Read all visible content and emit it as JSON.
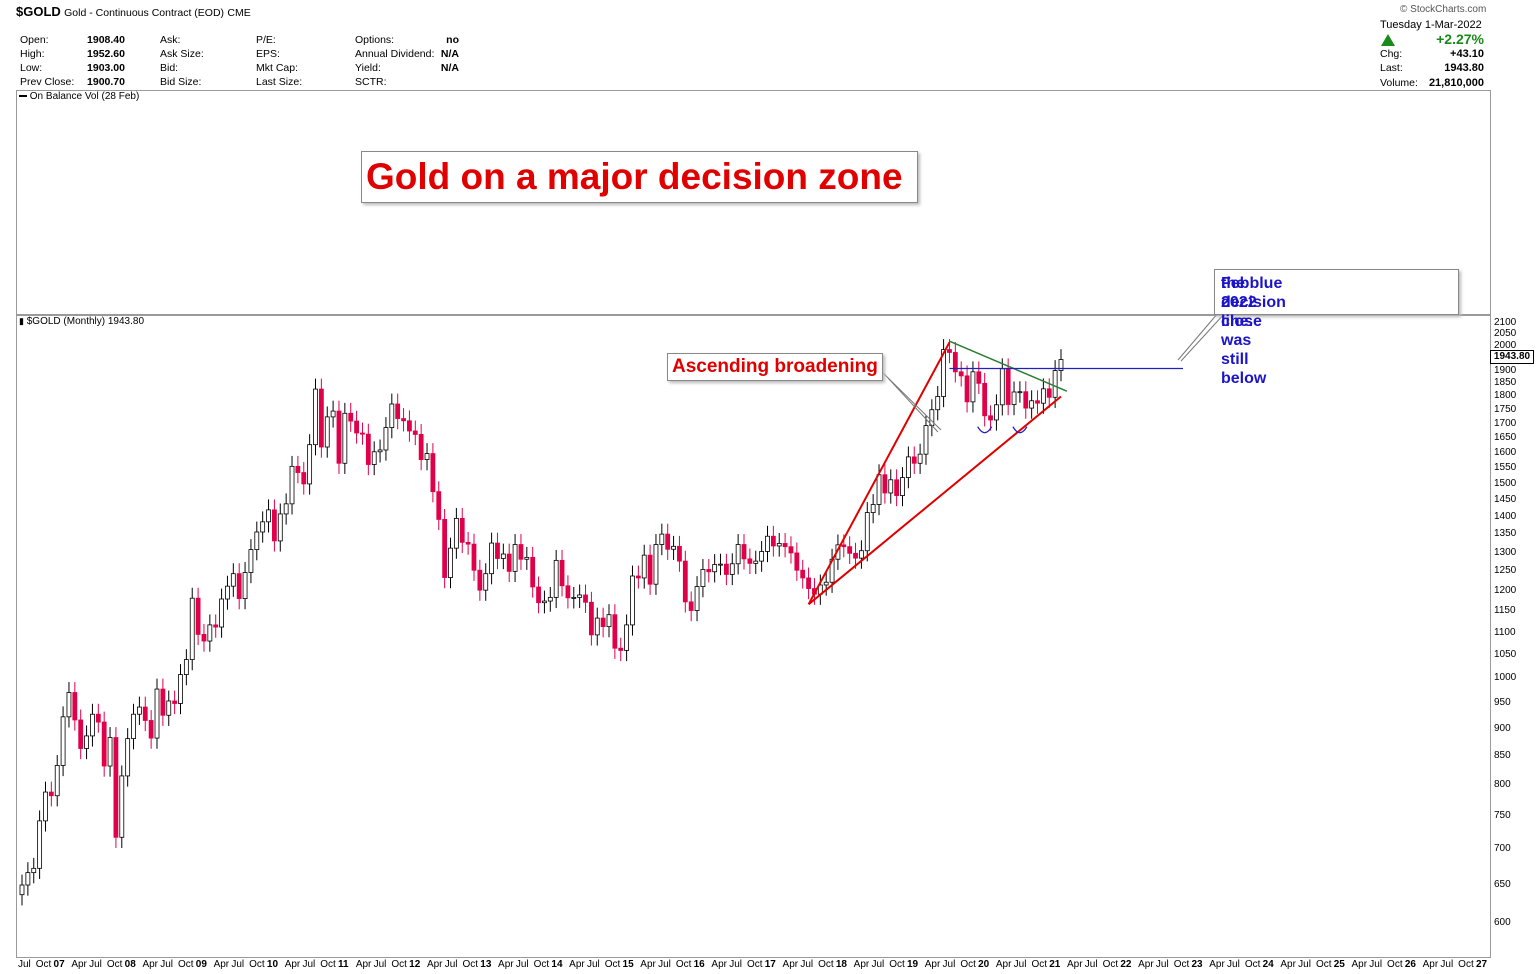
{
  "header": {
    "symbol": "$GOLD",
    "name": "Gold - Continuous Contract (EOD)",
    "exchange": "CME",
    "fields": [
      {
        "label": "Open:",
        "value": "1908.40"
      },
      {
        "label": "High:",
        "value": "1952.60"
      },
      {
        "label": "Low:",
        "value": "1903.00"
      },
      {
        "label": "Prev Close:",
        "value": "1900.70"
      },
      {
        "label": "Ask:",
        "value": ""
      },
      {
        "label": "Ask Size:",
        "value": ""
      },
      {
        "label": "Bid:",
        "value": ""
      },
      {
        "label": "Bid Size:",
        "value": ""
      },
      {
        "label": "P/E:",
        "value": ""
      },
      {
        "label": "EPS:",
        "value": ""
      },
      {
        "label": "Mkt Cap:",
        "value": ""
      },
      {
        "label": "Last Size:",
        "value": ""
      },
      {
        "label": "Options:",
        "value": "no"
      },
      {
        "label": "Annual Dividend:",
        "value": "N/A"
      },
      {
        "label": "Yield:",
        "value": "N/A"
      },
      {
        "label": "SCTR:",
        "value": ""
      }
    ],
    "watermark": "© StockCharts.com",
    "date": "Tuesday  1-Mar-2022",
    "change_pct": "+2.27%",
    "chg_label": "Chg:",
    "chg": "+43.10",
    "last_label": "Last:",
    "last": "1943.80",
    "volume_label": "Volume:",
    "volume": "21,810,000",
    "up_color": "#1a8a1a"
  },
  "indicator_label": "On Balance Vol (28 Feb)",
  "price_label": "$GOLD (Monthly) 1943.80",
  "price_tag": "1943.80",
  "title_annotation": "Gold on a major decision zone",
  "annotation_pattern": "Ascending broadening",
  "annotation_note_line1": "Feb 2022 close was still below",
  "annotation_note_line2": "the blue decision line.",
  "colors": {
    "up": "#ffffff",
    "down": "#e0004a",
    "wick": "#000000",
    "trend": "#e00000",
    "decision": "#2020c0",
    "resistance": "#2e7d32"
  },
  "chart_data": {
    "type": "candlestick",
    "title": "$GOLD (Monthly) 1943.80",
    "y_scale": "log",
    "ylim": [
      570,
      2120
    ],
    "y_ticks": [
      600,
      650,
      700,
      750,
      800,
      850,
      900,
      950,
      1000,
      1050,
      1100,
      1150,
      1200,
      1250,
      1300,
      1350,
      1400,
      1450,
      1500,
      1550,
      1600,
      1650,
      1700,
      1750,
      1800,
      1850,
      1900,
      1950,
      2000,
      2050,
      2100
    ],
    "x_start": "2007-06",
    "x_end": "2027-12",
    "x_labels": [
      "Jul",
      "Oct",
      "07",
      "Apr",
      "Jul",
      "Oct",
      "08",
      "Apr",
      "Jul",
      "Oct",
      "09",
      "Apr",
      "Jul",
      "Oct",
      "10",
      "Apr",
      "Jul",
      "Oct",
      "11",
      "Apr",
      "Jul",
      "Oct",
      "12",
      "Apr",
      "Jul",
      "Oct",
      "13",
      "Apr",
      "Jul",
      "Oct",
      "14",
      "Apr",
      "Jul",
      "Oct",
      "15",
      "Apr",
      "Jul",
      "Oct",
      "16",
      "Apr",
      "Jul",
      "Oct",
      "17",
      "Apr",
      "Jul",
      "Oct",
      "18",
      "Apr",
      "Jul",
      "Oct",
      "19",
      "Apr",
      "Jul",
      "Oct",
      "20",
      "Apr",
      "Jul",
      "Oct",
      "21",
      "Apr",
      "Jul",
      "Oct",
      "22",
      "Apr",
      "Jul",
      "Oct",
      "23",
      "Apr",
      "Jul",
      "Oct",
      "24",
      "Apr",
      "Jul",
      "Oct",
      "25",
      "Apr",
      "Jul",
      "Oct",
      "26",
      "Apr",
      "Jul",
      "Oct",
      "27"
    ],
    "series_close": [
      [
        "2007-06",
        650
      ],
      [
        "2007-07",
        667
      ],
      [
        "2007-08",
        673
      ],
      [
        "2007-09",
        743
      ],
      [
        "2007-10",
        789
      ],
      [
        "2007-11",
        783
      ],
      [
        "2007-12",
        834
      ],
      [
        "2008-01",
        923
      ],
      [
        "2008-02",
        971
      ],
      [
        "2008-03",
        917
      ],
      [
        "2008-04",
        864
      ],
      [
        "2008-05",
        887
      ],
      [
        "2008-06",
        928
      ],
      [
        "2008-07",
        913
      ],
      [
        "2008-08",
        833
      ],
      [
        "2008-09",
        884
      ],
      [
        "2008-10",
        718
      ],
      [
        "2008-11",
        816
      ],
      [
        "2008-12",
        882
      ],
      [
        "2009-01",
        928
      ],
      [
        "2009-02",
        942
      ],
      [
        "2009-03",
        916
      ],
      [
        "2009-04",
        883
      ],
      [
        "2009-05",
        978
      ],
      [
        "2009-06",
        926
      ],
      [
        "2009-07",
        954
      ],
      [
        "2009-08",
        949
      ],
      [
        "2009-09",
        1008
      ],
      [
        "2009-10",
        1040
      ],
      [
        "2009-11",
        1182
      ],
      [
        "2009-12",
        1096
      ],
      [
        "2010-01",
        1081
      ],
      [
        "2010-02",
        1118
      ],
      [
        "2010-03",
        1113
      ],
      [
        "2010-04",
        1180
      ],
      [
        "2010-05",
        1212
      ],
      [
        "2010-06",
        1244
      ],
      [
        "2010-07",
        1181
      ],
      [
        "2010-08",
        1247
      ],
      [
        "2010-09",
        1308
      ],
      [
        "2010-10",
        1357
      ],
      [
        "2010-11",
        1386
      ],
      [
        "2010-12",
        1421
      ],
      [
        "2011-01",
        1332
      ],
      [
        "2011-02",
        1409
      ],
      [
        "2011-03",
        1439
      ],
      [
        "2011-04",
        1556
      ],
      [
        "2011-05",
        1536
      ],
      [
        "2011-06",
        1500
      ],
      [
        "2011-07",
        1628
      ],
      [
        "2011-08",
        1828
      ],
      [
        "2011-09",
        1620
      ],
      [
        "2011-10",
        1725
      ],
      [
        "2011-11",
        1746
      ],
      [
        "2011-12",
        1566
      ],
      [
        "2012-01",
        1738
      ],
      [
        "2012-02",
        1710
      ],
      [
        "2012-03",
        1668
      ],
      [
        "2012-04",
        1664
      ],
      [
        "2012-05",
        1562
      ],
      [
        "2012-06",
        1604
      ],
      [
        "2012-07",
        1610
      ],
      [
        "2012-08",
        1687
      ],
      [
        "2012-09",
        1772
      ],
      [
        "2012-10",
        1719
      ],
      [
        "2012-11",
        1711
      ],
      [
        "2012-12",
        1675
      ],
      [
        "2013-01",
        1663
      ],
      [
        "2013-02",
        1578
      ],
      [
        "2013-03",
        1598
      ],
      [
        "2013-04",
        1476
      ],
      [
        "2013-05",
        1393
      ],
      [
        "2013-06",
        1234
      ],
      [
        "2013-07",
        1312
      ],
      [
        "2013-08",
        1396
      ],
      [
        "2013-09",
        1328
      ],
      [
        "2013-10",
        1323
      ],
      [
        "2013-11",
        1253
      ],
      [
        "2013-12",
        1202
      ],
      [
        "2014-01",
        1244
      ],
      [
        "2014-02",
        1326
      ],
      [
        "2014-03",
        1284
      ],
      [
        "2014-04",
        1296
      ],
      [
        "2014-05",
        1250
      ],
      [
        "2014-06",
        1322
      ],
      [
        "2014-07",
        1282
      ],
      [
        "2014-08",
        1287
      ],
      [
        "2014-09",
        1210
      ],
      [
        "2014-10",
        1171
      ],
      [
        "2014-11",
        1175
      ],
      [
        "2014-12",
        1184
      ],
      [
        "2015-01",
        1279
      ],
      [
        "2015-02",
        1213
      ],
      [
        "2015-03",
        1183
      ],
      [
        "2015-04",
        1184
      ],
      [
        "2015-05",
        1190
      ],
      [
        "2015-06",
        1172
      ],
      [
        "2015-07",
        1095
      ],
      [
        "2015-08",
        1134
      ],
      [
        "2015-09",
        1114
      ],
      [
        "2015-10",
        1142
      ],
      [
        "2015-11",
        1065
      ],
      [
        "2015-12",
        1060
      ],
      [
        "2016-01",
        1118
      ],
      [
        "2016-02",
        1238
      ],
      [
        "2016-03",
        1233
      ],
      [
        "2016-04",
        1293
      ],
      [
        "2016-05",
        1217
      ],
      [
        "2016-06",
        1322
      ],
      [
        "2016-07",
        1351
      ],
      [
        "2016-08",
        1309
      ],
      [
        "2016-09",
        1317
      ],
      [
        "2016-10",
        1277
      ],
      [
        "2016-11",
        1173
      ],
      [
        "2016-12",
        1152
      ],
      [
        "2017-01",
        1211
      ],
      [
        "2017-02",
        1255
      ],
      [
        "2017-03",
        1249
      ],
      [
        "2017-04",
        1268
      ],
      [
        "2017-05",
        1269
      ],
      [
        "2017-06",
        1242
      ],
      [
        "2017-07",
        1270
      ],
      [
        "2017-08",
        1322
      ],
      [
        "2017-09",
        1283
      ],
      [
        "2017-10",
        1271
      ],
      [
        "2017-11",
        1277
      ],
      [
        "2017-12",
        1303
      ],
      [
        "2018-01",
        1345
      ],
      [
        "2018-02",
        1318
      ],
      [
        "2018-03",
        1325
      ],
      [
        "2018-04",
        1316
      ],
      [
        "2018-05",
        1299
      ],
      [
        "2018-06",
        1253
      ],
      [
        "2018-07",
        1233
      ],
      [
        "2018-08",
        1206
      ],
      [
        "2018-09",
        1192
      ],
      [
        "2018-10",
        1215
      ],
      [
        "2018-11",
        1222
      ],
      [
        "2018-12",
        1282
      ],
      [
        "2019-01",
        1321
      ],
      [
        "2019-02",
        1316
      ],
      [
        "2019-03",
        1298
      ],
      [
        "2019-04",
        1285
      ],
      [
        "2019-05",
        1305
      ],
      [
        "2019-06",
        1413
      ],
      [
        "2019-07",
        1437
      ],
      [
        "2019-08",
        1529
      ],
      [
        "2019-09",
        1472
      ],
      [
        "2019-10",
        1513
      ],
      [
        "2019-11",
        1464
      ],
      [
        "2019-12",
        1520
      ],
      [
        "2020-01",
        1587
      ],
      [
        "2020-02",
        1566
      ],
      [
        "2020-03",
        1596
      ],
      [
        "2020-04",
        1694
      ],
      [
        "2020-05",
        1751
      ],
      [
        "2020-06",
        1800
      ],
      [
        "2020-07",
        1985
      ],
      [
        "2020-08",
        1973
      ],
      [
        "2020-09",
        1895
      ],
      [
        "2020-10",
        1879
      ],
      [
        "2020-11",
        1780
      ],
      [
        "2020-12",
        1895
      ],
      [
        "2021-01",
        1850
      ],
      [
        "2021-02",
        1729
      ],
      [
        "2021-03",
        1714
      ],
      [
        "2021-04",
        1769
      ],
      [
        "2021-05",
        1907
      ],
      [
        "2021-06",
        1770
      ],
      [
        "2021-07",
        1817
      ],
      [
        "2021-08",
        1818
      ],
      [
        "2021-09",
        1757
      ],
      [
        "2021-10",
        1784
      ],
      [
        "2021-11",
        1775
      ],
      [
        "2021-12",
        1829
      ],
      [
        "2022-01",
        1797
      ],
      [
        "2022-02",
        1900
      ],
      [
        "2022-03",
        1944
      ]
    ],
    "annotations": {
      "decision_line": 1908,
      "broadening_upper": [
        [
          "2018-08",
          1167
        ],
        [
          "2020-08",
          2015
        ]
      ],
      "broadening_lower": [
        [
          "2018-08",
          1167
        ],
        [
          "2022-03",
          1800
        ]
      ],
      "resistance": [
        [
          "2020-08",
          2020
        ],
        [
          "2022-04",
          1820
        ]
      ]
    }
  }
}
